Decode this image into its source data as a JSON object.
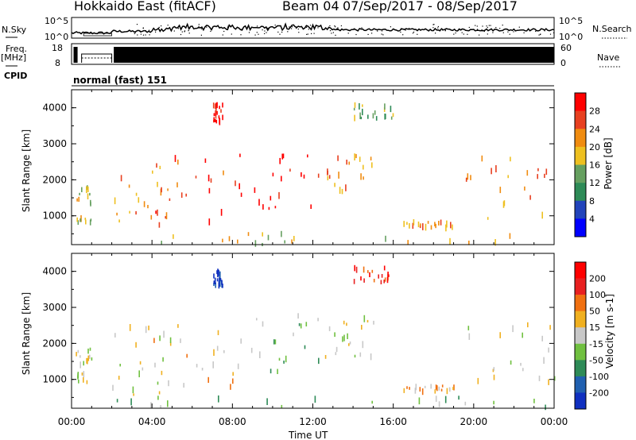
{
  "header": {
    "station": "Hokkaido East (fitACF)",
    "beam": "Beam 04",
    "dates": "07/Sep/2017 - 08/Sep/2017"
  },
  "strips": {
    "nsky_label": "N.Sky",
    "nsky_ticks": [
      "10^5",
      "10^0"
    ],
    "freq_label": "Freq.",
    "freq_unit": "[MHz]",
    "freq_ticks": [
      "18",
      "8"
    ],
    "cpid_label": "CPID",
    "cpid_value": "normal (fast) 151",
    "right_ticks_nsearch": [
      "10^5",
      "10^0"
    ],
    "nsearch_label": "N.Search",
    "right_ticks_nave": [
      "60",
      "0"
    ],
    "nave_label": "Nave"
  },
  "chart_data": [
    {
      "type": "heatmap",
      "name": "power",
      "ylabel": "Slant Range [km]",
      "ylim": [
        200,
        4500
      ],
      "y_ticks": [
        1000,
        2000,
        3000,
        4000
      ],
      "xlim": [
        0,
        24
      ],
      "colorbar": {
        "label": "Power [dB]",
        "ticks": [
          "4",
          "8",
          "12",
          "16",
          "20",
          "24",
          "28"
        ],
        "colors": [
          "#0000ff",
          "#2244bb",
          "#2e8b57",
          "#66a060",
          "#eec020",
          "#f08c10",
          "#e84020",
          "#ff0000"
        ]
      },
      "regions": [
        {
          "t0": 0.2,
          "t1": 1.0,
          "r0": 800,
          "r1": 1900,
          "level": 4
        },
        {
          "t0": 2.0,
          "t1": 5.0,
          "r0": 500,
          "r1": 2500,
          "level": 5
        },
        {
          "t0": 4.0,
          "t1": 8.5,
          "r0": 700,
          "r1": 2600,
          "level": 6
        },
        {
          "t0": 8.0,
          "t1": 12.5,
          "r0": 1200,
          "r1": 2800,
          "level": 7
        },
        {
          "t0": 12.5,
          "t1": 15.0,
          "r0": 1600,
          "r1": 2700,
          "level": 5
        },
        {
          "t0": 7.0,
          "t1": 7.5,
          "r0": 3600,
          "r1": 4100,
          "level": 7
        },
        {
          "t0": 14.0,
          "t1": 16.0,
          "r0": 3700,
          "r1": 4100,
          "level": 3
        },
        {
          "t0": 16.5,
          "t1": 19.0,
          "r0": 650,
          "r1": 820,
          "level": 5
        },
        {
          "t0": 19.5,
          "t1": 24.0,
          "r0": 900,
          "r1": 2600,
          "level": 5
        },
        {
          "t0": 2.0,
          "t1": 24.0,
          "r0": 200,
          "r1": 500,
          "level": 4
        }
      ]
    },
    {
      "type": "heatmap",
      "name": "velocity",
      "ylabel": "Slant Range [km]",
      "ylim": [
        200,
        4500
      ],
      "y_ticks": [
        1000,
        2000,
        3000,
        4000
      ],
      "xlim": [
        0,
        24
      ],
      "x_ticks": [
        "00:00",
        "04:00",
        "08:00",
        "12:00",
        "16:00",
        "20:00",
        "00:00"
      ],
      "xlabel": "Time UT",
      "colorbar": {
        "label": "Velocity [m s-1]",
        "ticks": [
          "200",
          "100",
          "50",
          "15",
          "-15",
          "-50",
          "-100",
          "-200"
        ],
        "colors": [
          "#1030c0",
          "#2060b0",
          "#2e8b57",
          "#70c040",
          "#c8c8c8",
          "#f0b020",
          "#f07010",
          "#e82020",
          "#ff0000"
        ]
      },
      "regions": [
        {
          "t0": 0.2,
          "t1": 1.0,
          "r0": 800,
          "r1": 1900,
          "level": 4
        },
        {
          "t0": 2.0,
          "t1": 5.0,
          "r0": 500,
          "r1": 2500,
          "level": 4
        },
        {
          "t0": 4.0,
          "t1": 8.5,
          "r0": 700,
          "r1": 2600,
          "level": 5
        },
        {
          "t0": 8.0,
          "t1": 12.5,
          "r0": 1200,
          "r1": 2800,
          "level": 3
        },
        {
          "t0": 12.5,
          "t1": 15.0,
          "r0": 1600,
          "r1": 2700,
          "level": 4
        },
        {
          "t0": 7.0,
          "t1": 7.5,
          "r0": 3600,
          "r1": 4100,
          "level": 0
        },
        {
          "t0": 14.0,
          "t1": 16.0,
          "r0": 3700,
          "r1": 4100,
          "level": 7
        },
        {
          "t0": 16.5,
          "t1": 19.0,
          "r0": 650,
          "r1": 820,
          "level": 5
        },
        {
          "t0": 19.5,
          "t1": 24.0,
          "r0": 900,
          "r1": 2600,
          "level": 4
        },
        {
          "t0": 2.0,
          "t1": 24.0,
          "r0": 200,
          "r1": 500,
          "level": 3
        }
      ]
    }
  ]
}
